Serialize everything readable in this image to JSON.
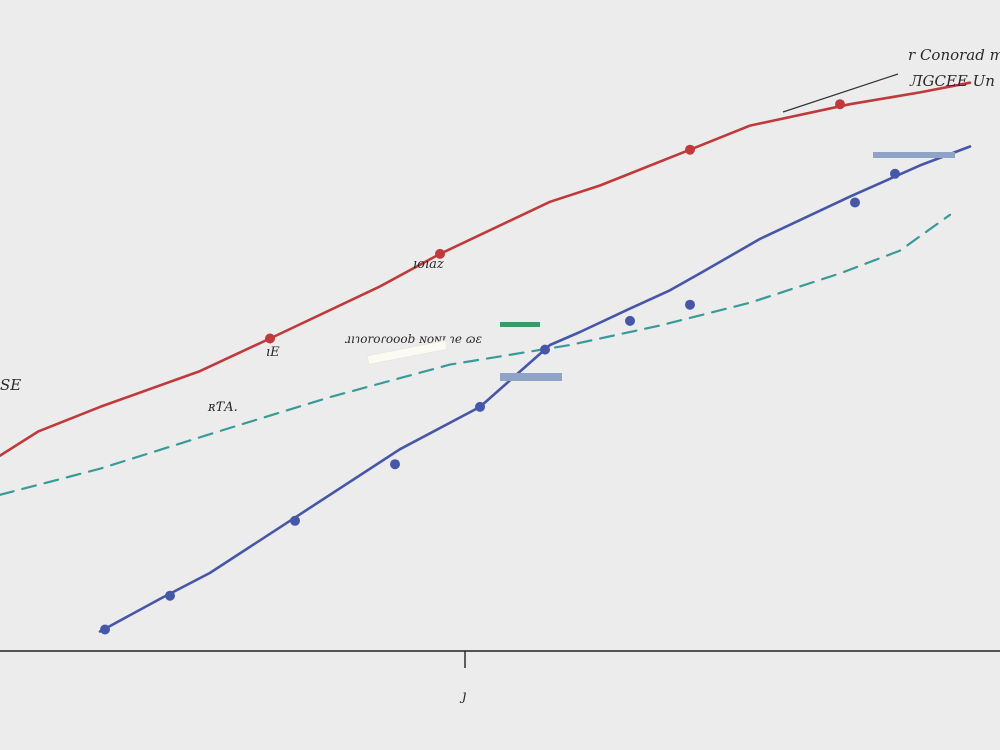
{
  "chart_data": {
    "type": "line",
    "title": "",
    "xlabel": "",
    "ylabel": "",
    "xlim": [
      0,
      100
    ],
    "ylim": [
      0,
      100
    ],
    "grid": false,
    "legend_position": "top-right",
    "legend": [
      "r Conorad m",
      "ЛGCEE Un"
    ],
    "x_tick_labels": [
      "ȷ"
    ],
    "x_ticks": [
      46.5
    ],
    "series": [
      {
        "color": "#c0393b",
        "style": "solid",
        "points": [
          [
            0,
            30
          ],
          [
            3.8,
            33.7
          ],
          [
            10,
            37.5
          ],
          [
            20,
            43
          ],
          [
            27,
            48
          ],
          [
            38,
            56
          ],
          [
            44,
            61
          ],
          [
            55,
            69
          ],
          [
            60,
            71.5
          ],
          [
            69,
            77
          ],
          [
            75,
            80.7
          ],
          [
            85,
            84
          ],
          [
            92,
            85.8
          ],
          [
            97,
            87.3
          ]
        ],
        "markers": [
          [
            27,
            48
          ],
          [
            44,
            61
          ],
          [
            69,
            77
          ],
          [
            84,
            84
          ]
        ]
      },
      {
        "color": "#4656a8",
        "style": "solid",
        "points": [
          [
            10,
            3
          ],
          [
            16,
            8
          ],
          [
            21,
            12
          ],
          [
            30,
            21
          ],
          [
            40,
            31
          ],
          [
            48,
            37.5
          ],
          [
            55,
            47
          ],
          [
            58,
            49
          ],
          [
            63,
            52.6
          ],
          [
            67,
            55.4
          ],
          [
            70,
            58
          ],
          [
            76,
            63.3
          ],
          [
            85,
            69.8
          ],
          [
            92,
            74.6
          ],
          [
            97,
            77.5
          ]
        ],
        "markers": [
          [
            10.5,
            3.3
          ],
          [
            17,
            8.5
          ],
          [
            29.5,
            20
          ],
          [
            39.5,
            28.7
          ],
          [
            48,
            37.5
          ],
          [
            54.5,
            46.3
          ],
          [
            63,
            50.7
          ],
          [
            69,
            53.2
          ],
          [
            85.5,
            68.9
          ],
          [
            89.5,
            73.3
          ]
        ]
      },
      {
        "color": "#3a9a98",
        "style": "dashed",
        "points": [
          [
            0,
            24
          ],
          [
            10,
            28
          ],
          [
            22,
            33.8
          ],
          [
            33,
            39
          ],
          [
            45,
            44
          ],
          [
            57,
            47
          ],
          [
            66,
            50
          ],
          [
            75,
            53.5
          ],
          [
            84,
            58
          ],
          [
            90,
            61.5
          ],
          [
            95,
            67
          ]
        ],
        "markers": []
      }
    ],
    "annotations": [
      "ıoıaz",
      "ıE",
      "ɹıɿoroɾooob ɴoɴɪ ɿe ɷɛ",
      "ʀƬA.",
      "SE"
    ]
  }
}
